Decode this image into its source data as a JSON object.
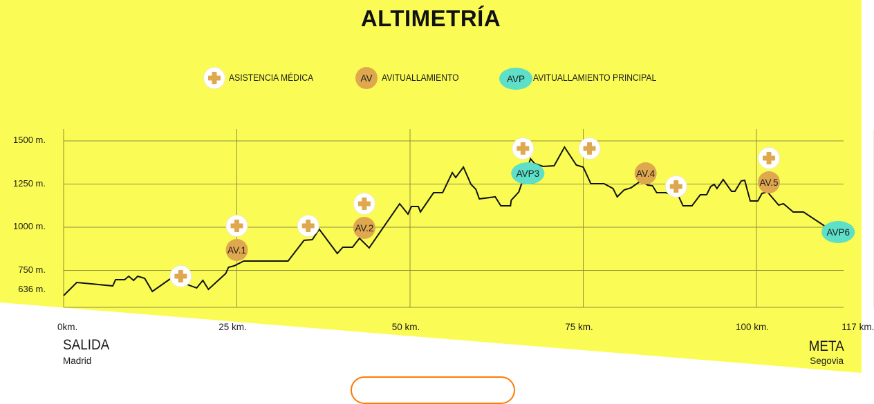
{
  "title": "ALTIMETRÍA",
  "legend": [
    {
      "type": "medical",
      "icon": "plus-cross-icon",
      "symbol": "",
      "label": "ASISTENCIA MÉDICA"
    },
    {
      "type": "av",
      "icon": "circle-badge",
      "symbol": "AV",
      "label": "AVITUALLAMIENTO"
    },
    {
      "type": "avp",
      "icon": "ellipse-badge",
      "symbol": "AVP",
      "label": "AVITUALLAMIENTO PRINCIPAL"
    }
  ],
  "colors": {
    "background": "#fafc55",
    "grid": "#8f8f3c",
    "line": "#111111",
    "av": "#dfa84f",
    "avp": "#5ddfc8",
    "medical_cross": "#dfa84f",
    "button": "#ff7a00"
  },
  "start": {
    "label": "SALIDA",
    "city": "Madrid"
  },
  "finish": {
    "label": "META",
    "city": "Segovia"
  },
  "chart_data": {
    "type": "line",
    "title": "ALTIMETRÍA",
    "xlabel": "km",
    "ylabel": "m",
    "xlim": [
      0,
      117
    ],
    "ylim": [
      536,
      1500
    ],
    "grid": true,
    "y_ticks": [
      {
        "value": 1500,
        "label": "1500 m."
      },
      {
        "value": 1250,
        "label": "1250 m."
      },
      {
        "value": 1000,
        "label": "1000 m."
      },
      {
        "value": 750,
        "label": "750 m."
      },
      {
        "value": 636,
        "label": "636 m."
      }
    ],
    "x_ticks": [
      {
        "value": 0,
        "label": "0km."
      },
      {
        "value": 25,
        "label": "25 km."
      },
      {
        "value": 50,
        "label": "50 km."
      },
      {
        "value": 75,
        "label": "75 km."
      },
      {
        "value": 100,
        "label": "100 km."
      },
      {
        "value": 117,
        "label": "117 km."
      }
    ],
    "profile": [
      [
        0,
        604
      ],
      [
        1.9,
        680
      ],
      [
        7.1,
        660
      ],
      [
        7.5,
        696
      ],
      [
        8.8,
        696
      ],
      [
        9.4,
        716
      ],
      [
        10.1,
        692
      ],
      [
        10.7,
        716
      ],
      [
        11.7,
        704
      ],
      [
        12.8,
        628
      ],
      [
        15.5,
        704
      ],
      [
        18.1,
        664
      ],
      [
        19.2,
        648
      ],
      [
        20.1,
        692
      ],
      [
        20.9,
        640
      ],
      [
        23.4,
        732
      ],
      [
        23.8,
        768
      ],
      [
        24.6,
        776
      ],
      [
        26.0,
        804
      ],
      [
        32.4,
        804
      ],
      [
        34.7,
        924
      ],
      [
        35.9,
        928
      ],
      [
        36.9,
        988
      ],
      [
        39.5,
        848
      ],
      [
        40.3,
        884
      ],
      [
        41.7,
        884
      ],
      [
        42.7,
        936
      ],
      [
        44.1,
        880
      ],
      [
        48.5,
        1136
      ],
      [
        49.7,
        1076
      ],
      [
        50.2,
        1120
      ],
      [
        51.2,
        1120
      ],
      [
        51.5,
        1088
      ],
      [
        53.4,
        1200
      ],
      [
        54.7,
        1200
      ],
      [
        56.1,
        1316
      ],
      [
        56.6,
        1288
      ],
      [
        57.7,
        1348
      ],
      [
        58.8,
        1248
      ],
      [
        59.5,
        1220
      ],
      [
        60.0,
        1164
      ],
      [
        62.3,
        1176
      ],
      [
        63.1,
        1124
      ],
      [
        64.5,
        1124
      ],
      [
        64.6,
        1156
      ],
      [
        65.7,
        1204
      ],
      [
        66.1,
        1252
      ],
      [
        67.4,
        1396
      ],
      [
        68.0,
        1368
      ],
      [
        69.2,
        1352
      ],
      [
        70.8,
        1356
      ],
      [
        72.3,
        1464
      ],
      [
        74.0,
        1360
      ],
      [
        75.0,
        1348
      ],
      [
        76.1,
        1252
      ],
      [
        78.0,
        1252
      ],
      [
        79.3,
        1224
      ],
      [
        79.9,
        1176
      ],
      [
        80.9,
        1216
      ],
      [
        81.9,
        1228
      ],
      [
        83.3,
        1268
      ],
      [
        84.3,
        1244
      ],
      [
        85.0,
        1240
      ],
      [
        85.6,
        1200
      ],
      [
        86.9,
        1200
      ],
      [
        88.8,
        1176
      ],
      [
        89.4,
        1124
      ],
      [
        90.7,
        1124
      ],
      [
        91.9,
        1188
      ],
      [
        92.8,
        1188
      ],
      [
        93.4,
        1236
      ],
      [
        93.9,
        1248
      ],
      [
        94.3,
        1224
      ],
      [
        95.2,
        1276
      ],
      [
        96.4,
        1208
      ],
      [
        96.9,
        1208
      ],
      [
        97.8,
        1268
      ],
      [
        98.3,
        1272
      ],
      [
        99.1,
        1152
      ],
      [
        100.2,
        1152
      ],
      [
        100.8,
        1196
      ],
      [
        101.6,
        1204
      ],
      [
        103.2,
        1128
      ],
      [
        103.9,
        1136
      ],
      [
        105.3,
        1088
      ],
      [
        106.8,
        1088
      ],
      [
        109.8,
        1008
      ]
    ],
    "medical_points": [
      [
        16.9,
        716
      ],
      [
        25.0,
        1008
      ],
      [
        35.3,
        1008
      ],
      [
        43.4,
        1136
      ],
      [
        66.3,
        1456
      ],
      [
        75.9,
        1456
      ],
      [
        88.4,
        1236
      ],
      [
        101.8,
        1400
      ]
    ],
    "aid_stations": [
      {
        "label": "AV.1",
        "type": "av",
        "km": 25.0,
        "m": 868
      },
      {
        "label": "AV.2",
        "type": "av",
        "km": 43.4,
        "m": 996
      },
      {
        "label": "AVP3",
        "type": "avp",
        "km": 67.0,
        "m": 1312
      },
      {
        "label": "AV.4",
        "type": "av",
        "km": 84.0,
        "m": 1312
      },
      {
        "label": "AV.5",
        "type": "av",
        "km": 101.8,
        "m": 1260
      },
      {
        "label": "AVP6",
        "type": "avp",
        "km": 111.8,
        "m": 972
      }
    ]
  }
}
